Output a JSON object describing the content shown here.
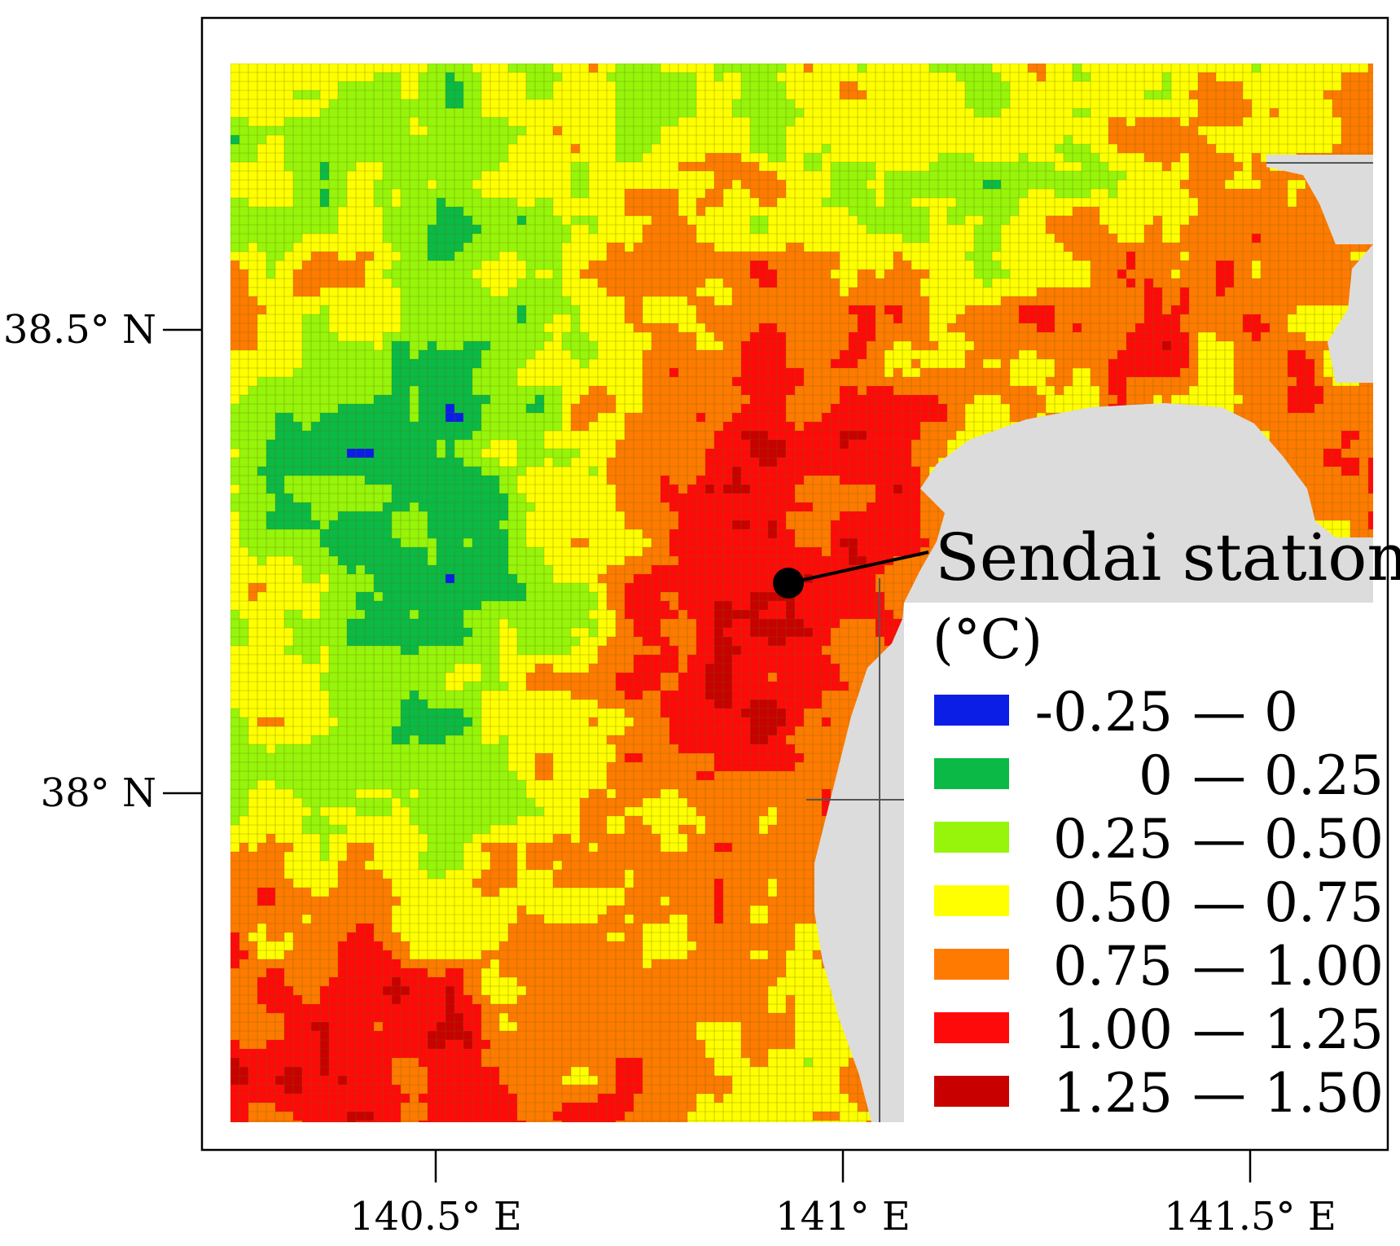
{
  "colors": {
    "sea": "#dcdcdc",
    "gridline": "#6b6b00",
    "frame": "#000000"
  },
  "axes": {
    "lat_ticks": [
      {
        "value": 38.5,
        "label": "38.5° N"
      },
      {
        "value": 38.0,
        "label": "38° N"
      }
    ],
    "lon_ticks": [
      {
        "value": 140.5,
        "label": "140.5° E"
      },
      {
        "value": 141.0,
        "label": "141° E"
      },
      {
        "value": 141.5,
        "label": "141.5° E"
      }
    ]
  },
  "annotation": {
    "label": "Sendai station",
    "lon": 140.88,
    "lat": 38.26,
    "marker_icon": "point-marker-icon"
  },
  "legend": {
    "unit": "(°C)",
    "dash": "—",
    "items": [
      {
        "from": "-0.25",
        "to": "0",
        "color": "#0a1ee6"
      },
      {
        "from": "0",
        "to": "0.25",
        "color": "#0ab946"
      },
      {
        "from": "0.25",
        "to": "0.50",
        "color": "#96f50a"
      },
      {
        "from": "0.50",
        "to": "0.75",
        "color": "#ffff00"
      },
      {
        "from": "0.75",
        "to": "1.00",
        "color": "#ff7a00"
      },
      {
        "from": "1.00",
        "to": "1.25",
        "color": "#ff0a0a"
      },
      {
        "from": "1.25",
        "to": "1.50",
        "color": "#c80000"
      }
    ]
  }
}
